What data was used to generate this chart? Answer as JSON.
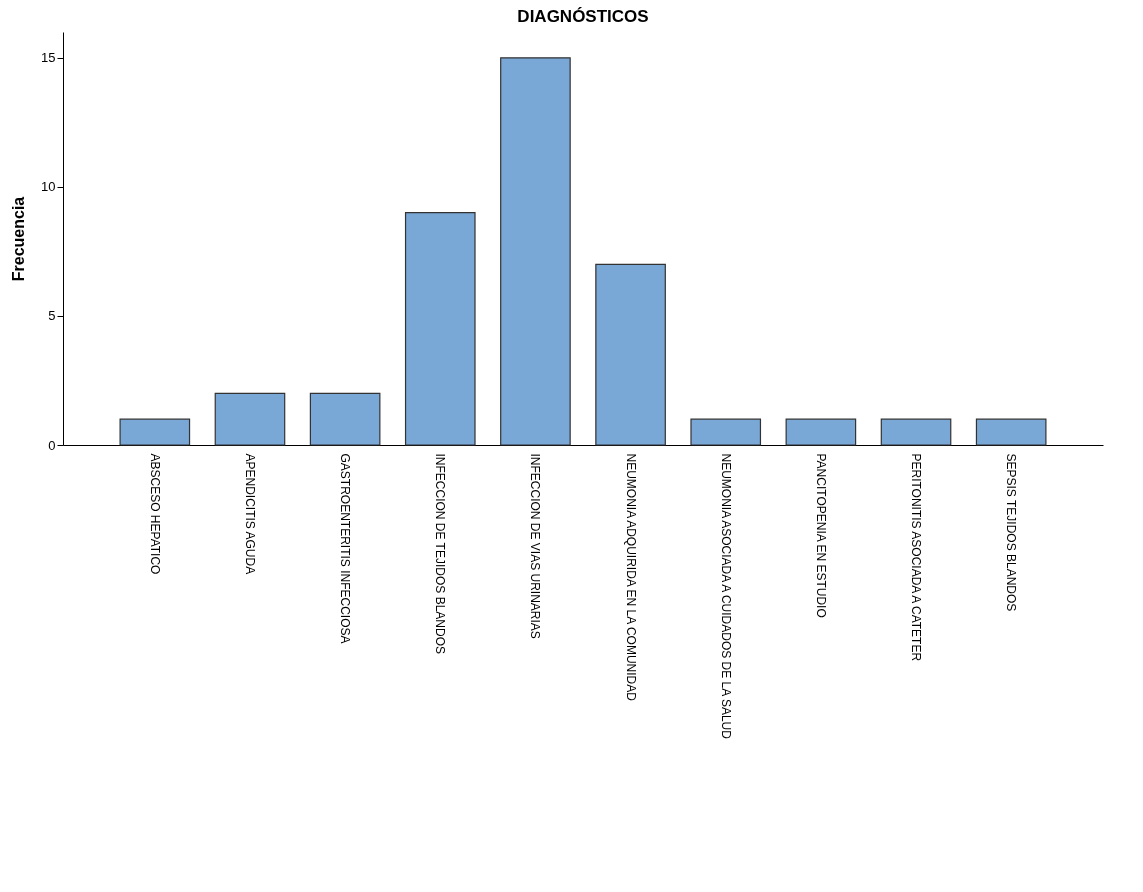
{
  "chart_data": {
    "type": "bar",
    "title": "DIAGNÓSTICOS",
    "ylabel": "Frecuencia",
    "categories": [
      "ABSCESO HEPATICO",
      "APENDICITIS AGUDA",
      "GASTROENTERITIS INFECCIOSA",
      "INFECCION DE TEJIDOS BLANDOS",
      "INFECCION DE VIAS URINARIAS",
      "NEUMONIA ADQUIRIDA EN LA COMUNIDAD",
      "NEUMONIA ASOCIADA A CUIDADOS DE LA SALUD",
      "PANCITOPENIA EN ESTUDIO",
      "PERITONITIS ASOCIADA A CATETER",
      "SEPSIS TEJIDOS BLANDOS"
    ],
    "values": [
      1,
      2,
      2,
      9,
      15,
      7,
      1,
      1,
      1,
      1
    ],
    "color": "#79a7d6",
    "ylim": [
      0,
      16
    ],
    "yticks": [
      0,
      5,
      10,
      15
    ],
    "grid": false
  }
}
